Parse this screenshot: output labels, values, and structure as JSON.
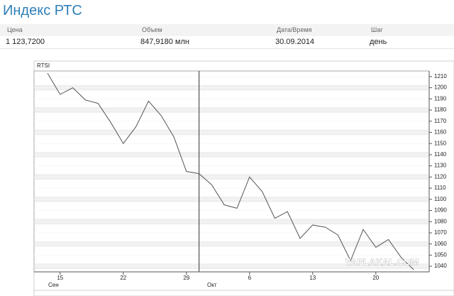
{
  "header": {
    "title": "Индекс РТС"
  },
  "table": {
    "columns": [
      "Цена",
      "Объем",
      "Дата/Время",
      "Шаг"
    ],
    "rows": [
      [
        "1 123,7200",
        "847,9180 млн",
        "30.09.2014",
        "день"
      ]
    ]
  },
  "watermark": "YAPLAKAL.COM",
  "chart_data": {
    "type": "line",
    "title": "RTSI",
    "categories": [
      null,
      "15",
      null,
      null,
      null,
      null,
      "22",
      null,
      null,
      null,
      null,
      "29",
      null,
      null,
      null,
      null,
      "6",
      null,
      null,
      null,
      null,
      "13",
      null,
      null,
      null,
      null,
      "20",
      null,
      null,
      null
    ],
    "months": [
      "Сен",
      "Окт"
    ],
    "series": [
      {
        "name": "RTSI",
        "color": "#555555",
        "values": [
          1213,
          1194,
          1200,
          1189,
          1186,
          1169,
          1150,
          1165,
          1188,
          1175,
          1156,
          1125,
          1123,
          1113,
          1095,
          1092,
          1120,
          1107,
          1083,
          1089,
          1065,
          1077,
          1075,
          1068,
          1045,
          1073,
          1057,
          1064,
          1048,
          1037
        ]
      }
    ],
    "ylim": [
      1035,
      1215
    ],
    "yticks": [
      1040,
      1050,
      1060,
      1070,
      1080,
      1090,
      1100,
      1110,
      1120,
      1130,
      1140,
      1150,
      1160,
      1170,
      1180,
      1190,
      1200,
      1210
    ],
    "grid": true
  }
}
